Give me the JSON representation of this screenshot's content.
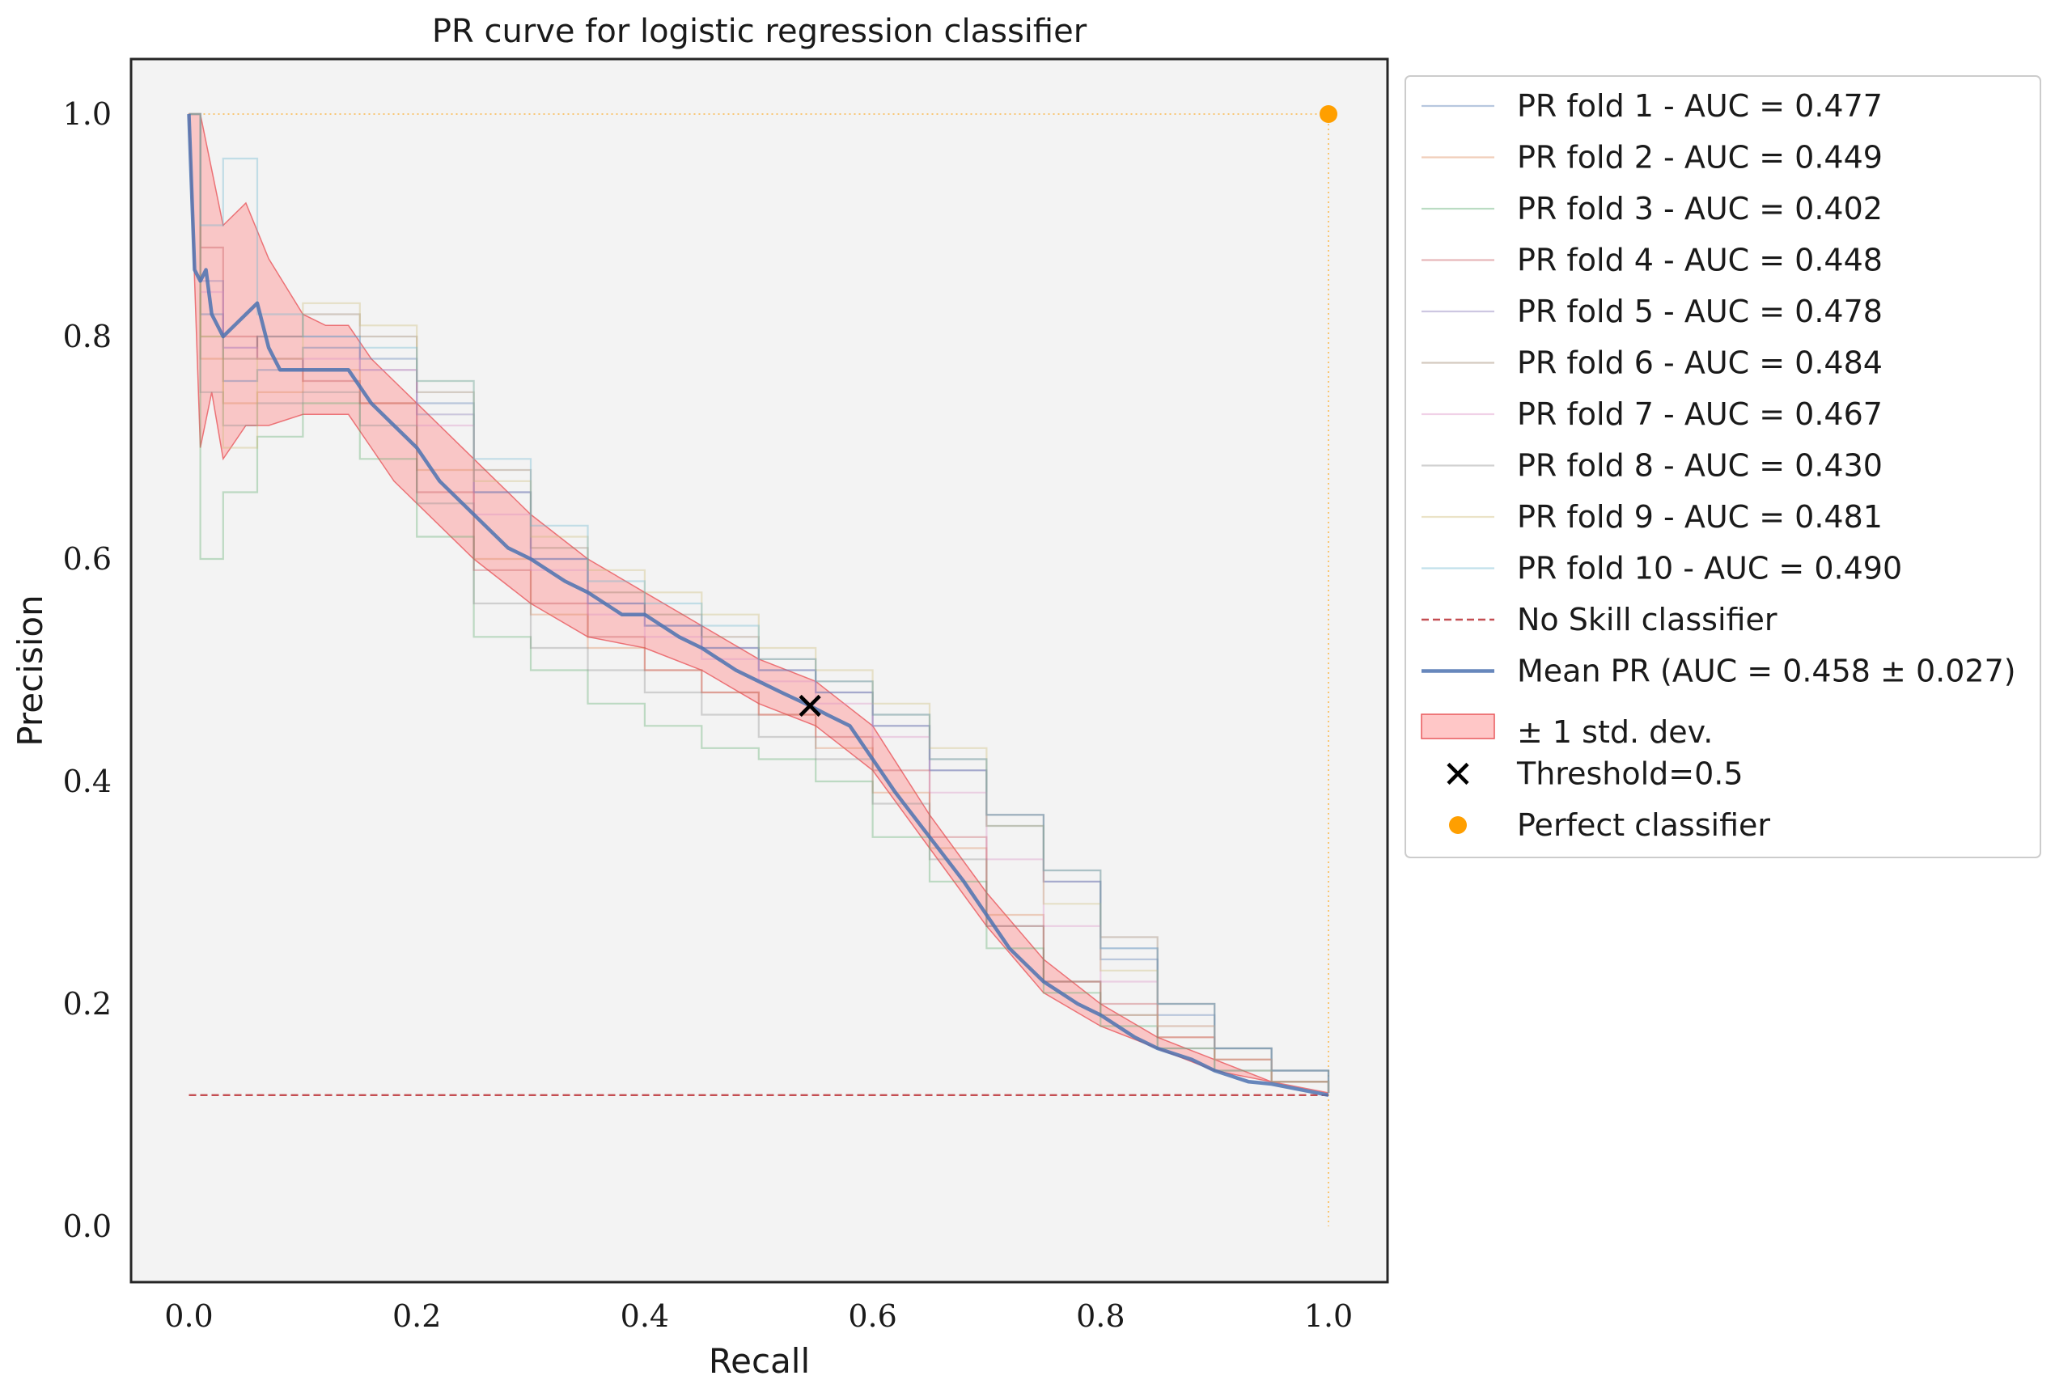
{
  "chart_data": {
    "type": "line",
    "title": "PR curve for logistic regression classifier",
    "xlabel": "Recall",
    "ylabel": "Precision",
    "xlim": [
      -0.05,
      1.05
    ],
    "ylim": [
      -0.05,
      1.05
    ],
    "xticks": [
      "0.0",
      "0.2",
      "0.4",
      "0.6",
      "0.8",
      "1.0"
    ],
    "yticks": [
      "0.0",
      "0.2",
      "0.4",
      "0.6",
      "0.8",
      "1.0"
    ],
    "grid": false,
    "legend_position": "outside right, top",
    "background_color": "#f3f3f3",
    "series": [
      {
        "name": "PR fold 1 - AUC = 0.477",
        "color": "#4c72b0",
        "x": [
          0.0,
          0.01,
          0.03,
          0.06,
          0.1,
          0.15,
          0.2,
          0.25,
          0.3,
          0.35,
          0.4,
          0.45,
          0.5,
          0.55,
          0.6,
          0.65,
          0.7,
          0.75,
          0.8,
          0.85,
          0.9,
          0.95,
          1.0
        ],
        "y": [
          1.0,
          0.82,
          0.76,
          0.77,
          0.79,
          0.78,
          0.74,
          0.66,
          0.6,
          0.56,
          0.54,
          0.52,
          0.5,
          0.48,
          0.45,
          0.41,
          0.36,
          0.31,
          0.24,
          0.19,
          0.16,
          0.14,
          0.12
        ]
      },
      {
        "name": "PR fold 2 - AUC = 0.449",
        "color": "#dd8452",
        "x": [
          0.0,
          0.01,
          0.03,
          0.06,
          0.1,
          0.15,
          0.2,
          0.25,
          0.3,
          0.35,
          0.4,
          0.45,
          0.5,
          0.55,
          0.6,
          0.65,
          0.7,
          0.75,
          0.8,
          0.85,
          0.9,
          0.95,
          1.0
        ],
        "y": [
          1.0,
          0.78,
          0.74,
          0.75,
          0.77,
          0.74,
          0.68,
          0.6,
          0.55,
          0.52,
          0.5,
          0.48,
          0.46,
          0.43,
          0.39,
          0.34,
          0.28,
          0.22,
          0.19,
          0.17,
          0.15,
          0.13,
          0.12
        ]
      },
      {
        "name": "PR fold 3 - AUC = 0.402",
        "color": "#55a868",
        "x": [
          0.0,
          0.01,
          0.03,
          0.06,
          0.1,
          0.15,
          0.2,
          0.25,
          0.3,
          0.35,
          0.4,
          0.45,
          0.5,
          0.55,
          0.6,
          0.65,
          0.7,
          0.75,
          0.8,
          0.85,
          0.9,
          0.95,
          1.0
        ],
        "y": [
          1.0,
          0.6,
          0.66,
          0.71,
          0.74,
          0.69,
          0.62,
          0.53,
          0.5,
          0.47,
          0.45,
          0.43,
          0.42,
          0.4,
          0.35,
          0.31,
          0.25,
          0.21,
          0.18,
          0.16,
          0.14,
          0.13,
          0.12
        ]
      },
      {
        "name": "PR fold 4 - AUC = 0.448",
        "color": "#c44e52",
        "x": [
          0.0,
          0.01,
          0.03,
          0.06,
          0.1,
          0.15,
          0.2,
          0.25,
          0.3,
          0.35,
          0.4,
          0.45,
          0.5,
          0.55,
          0.6,
          0.65,
          0.7,
          0.75,
          0.8,
          0.85,
          0.9,
          0.95,
          1.0
        ],
        "y": [
          1.0,
          0.88,
          0.8,
          0.78,
          0.76,
          0.74,
          0.66,
          0.59,
          0.56,
          0.53,
          0.5,
          0.48,
          0.46,
          0.44,
          0.41,
          0.35,
          0.27,
          0.22,
          0.2,
          0.17,
          0.15,
          0.13,
          0.12
        ]
      },
      {
        "name": "PR fold 5 - AUC = 0.478",
        "color": "#8172b3",
        "x": [
          0.0,
          0.01,
          0.03,
          0.06,
          0.1,
          0.15,
          0.2,
          0.25,
          0.3,
          0.35,
          0.4,
          0.45,
          0.5,
          0.55,
          0.6,
          0.65,
          0.7,
          0.75,
          0.8,
          0.85,
          0.9,
          0.95,
          1.0
        ],
        "y": [
          1.0,
          0.85,
          0.79,
          0.8,
          0.8,
          0.77,
          0.73,
          0.66,
          0.6,
          0.56,
          0.54,
          0.52,
          0.5,
          0.48,
          0.45,
          0.41,
          0.37,
          0.31,
          0.25,
          0.2,
          0.16,
          0.14,
          0.12
        ]
      },
      {
        "name": "PR fold 6 - AUC = 0.484",
        "color": "#937860",
        "x": [
          0.0,
          0.01,
          0.03,
          0.06,
          0.1,
          0.15,
          0.2,
          0.25,
          0.3,
          0.35,
          0.4,
          0.45,
          0.5,
          0.55,
          0.6,
          0.65,
          0.7,
          0.75,
          0.8,
          0.85,
          0.9,
          0.95,
          1.0
        ],
        "y": [
          1.0,
          0.8,
          0.78,
          0.8,
          0.82,
          0.8,
          0.75,
          0.68,
          0.61,
          0.57,
          0.55,
          0.53,
          0.51,
          0.49,
          0.46,
          0.42,
          0.37,
          0.32,
          0.26,
          0.2,
          0.16,
          0.14,
          0.12
        ]
      },
      {
        "name": "PR fold 7 - AUC = 0.467",
        "color": "#da8bc3",
        "x": [
          0.0,
          0.01,
          0.03,
          0.06,
          0.1,
          0.15,
          0.2,
          0.25,
          0.3,
          0.35,
          0.4,
          0.45,
          0.5,
          0.55,
          0.6,
          0.65,
          0.7,
          0.75,
          0.8,
          0.85,
          0.9,
          0.95,
          1.0
        ],
        "y": [
          1.0,
          0.84,
          0.79,
          0.78,
          0.78,
          0.77,
          0.72,
          0.64,
          0.59,
          0.55,
          0.53,
          0.51,
          0.49,
          0.47,
          0.44,
          0.39,
          0.33,
          0.27,
          0.22,
          0.18,
          0.15,
          0.13,
          0.12
        ]
      },
      {
        "name": "PR fold 8 - AUC = 0.430",
        "color": "#8c8c8c",
        "x": [
          0.0,
          0.01,
          0.03,
          0.06,
          0.1,
          0.15,
          0.2,
          0.25,
          0.3,
          0.35,
          0.4,
          0.45,
          0.5,
          0.55,
          0.6,
          0.65,
          0.7,
          0.75,
          0.8,
          0.85,
          0.9,
          0.95,
          1.0
        ],
        "y": [
          1.0,
          0.75,
          0.72,
          0.74,
          0.75,
          0.72,
          0.65,
          0.56,
          0.52,
          0.5,
          0.48,
          0.46,
          0.44,
          0.42,
          0.38,
          0.33,
          0.27,
          0.22,
          0.19,
          0.16,
          0.14,
          0.13,
          0.12
        ]
      },
      {
        "name": "PR fold 9 - AUC = 0.481",
        "color": "#ccb974",
        "x": [
          0.0,
          0.01,
          0.03,
          0.06,
          0.1,
          0.15,
          0.2,
          0.25,
          0.3,
          0.35,
          0.4,
          0.45,
          0.5,
          0.55,
          0.6,
          0.65,
          0.7,
          0.75,
          0.8,
          0.85,
          0.9,
          0.95,
          1.0
        ],
        "y": [
          1.0,
          0.8,
          0.7,
          0.78,
          0.83,
          0.81,
          0.76,
          0.67,
          0.62,
          0.59,
          0.57,
          0.55,
          0.52,
          0.5,
          0.47,
          0.43,
          0.36,
          0.29,
          0.23,
          0.18,
          0.15,
          0.13,
          0.12
        ]
      },
      {
        "name": "PR fold 10 - AUC = 0.490",
        "color": "#64b5cd",
        "x": [
          0.0,
          0.01,
          0.03,
          0.06,
          0.1,
          0.15,
          0.2,
          0.25,
          0.3,
          0.35,
          0.4,
          0.45,
          0.5,
          0.55,
          0.6,
          0.65,
          0.7,
          0.75,
          0.8,
          0.85,
          0.9,
          0.95,
          1.0
        ],
        "y": [
          1.0,
          0.9,
          0.96,
          0.82,
          0.8,
          0.79,
          0.76,
          0.69,
          0.63,
          0.58,
          0.56,
          0.54,
          0.51,
          0.49,
          0.46,
          0.42,
          0.37,
          0.32,
          0.25,
          0.2,
          0.16,
          0.14,
          0.12
        ]
      },
      {
        "name": "No Skill classifier",
        "color": "#c44e52",
        "x": [
          0.0,
          1.0
        ],
        "y": [
          0.118,
          0.118
        ]
      },
      {
        "name": "Mean PR (AUC = 0.458 ± 0.027)",
        "color": "#4c72b0",
        "x": [
          0.0,
          0.005,
          0.01,
          0.015,
          0.02,
          0.03,
          0.04,
          0.05,
          0.06,
          0.07,
          0.08,
          0.1,
          0.12,
          0.14,
          0.16,
          0.18,
          0.2,
          0.22,
          0.25,
          0.28,
          0.3,
          0.33,
          0.35,
          0.38,
          0.4,
          0.43,
          0.45,
          0.48,
          0.5,
          0.52,
          0.545,
          0.56,
          0.58,
          0.6,
          0.62,
          0.65,
          0.68,
          0.7,
          0.72,
          0.75,
          0.78,
          0.8,
          0.83,
          0.85,
          0.88,
          0.9,
          0.93,
          0.95,
          0.98,
          1.0
        ],
        "y": [
          1.0,
          0.86,
          0.85,
          0.86,
          0.82,
          0.8,
          0.81,
          0.82,
          0.83,
          0.79,
          0.77,
          0.77,
          0.77,
          0.77,
          0.74,
          0.72,
          0.7,
          0.67,
          0.64,
          0.61,
          0.6,
          0.58,
          0.57,
          0.55,
          0.55,
          0.53,
          0.52,
          0.5,
          0.49,
          0.48,
          0.468,
          0.46,
          0.45,
          0.42,
          0.39,
          0.35,
          0.31,
          0.28,
          0.25,
          0.22,
          0.2,
          0.19,
          0.17,
          0.16,
          0.15,
          0.14,
          0.13,
          0.128,
          0.122,
          0.118
        ]
      },
      {
        "name": "± 1 std. dev.",
        "color": "#f08080",
        "x": [
          0.0,
          0.01,
          0.02,
          0.03,
          0.05,
          0.07,
          0.1,
          0.12,
          0.14,
          0.16,
          0.18,
          0.2,
          0.25,
          0.3,
          0.35,
          0.4,
          0.45,
          0.5,
          0.55,
          0.6,
          0.65,
          0.7,
          0.75,
          0.8,
          0.85,
          0.9,
          0.95,
          1.0
        ],
        "upper": [
          1.0,
          1.0,
          0.95,
          0.9,
          0.92,
          0.87,
          0.82,
          0.81,
          0.81,
          0.78,
          0.76,
          0.74,
          0.69,
          0.64,
          0.6,
          0.57,
          0.54,
          0.51,
          0.49,
          0.45,
          0.37,
          0.3,
          0.24,
          0.2,
          0.17,
          0.15,
          0.13,
          0.12
        ],
        "lower": [
          1.0,
          0.7,
          0.75,
          0.69,
          0.72,
          0.72,
          0.73,
          0.73,
          0.73,
          0.7,
          0.67,
          0.65,
          0.6,
          0.56,
          0.53,
          0.52,
          0.5,
          0.47,
          0.45,
          0.41,
          0.34,
          0.27,
          0.21,
          0.18,
          0.16,
          0.14,
          0.13,
          0.12
        ]
      }
    ],
    "markers": [
      {
        "name": "Threshold=0.5",
        "x": 0.545,
        "y": 0.468,
        "symbol": "x",
        "color": "#000000"
      },
      {
        "name": "Perfect classifier",
        "x": 1.0,
        "y": 1.0,
        "symbol": "circle",
        "color": "#ff9f00"
      }
    ]
  }
}
